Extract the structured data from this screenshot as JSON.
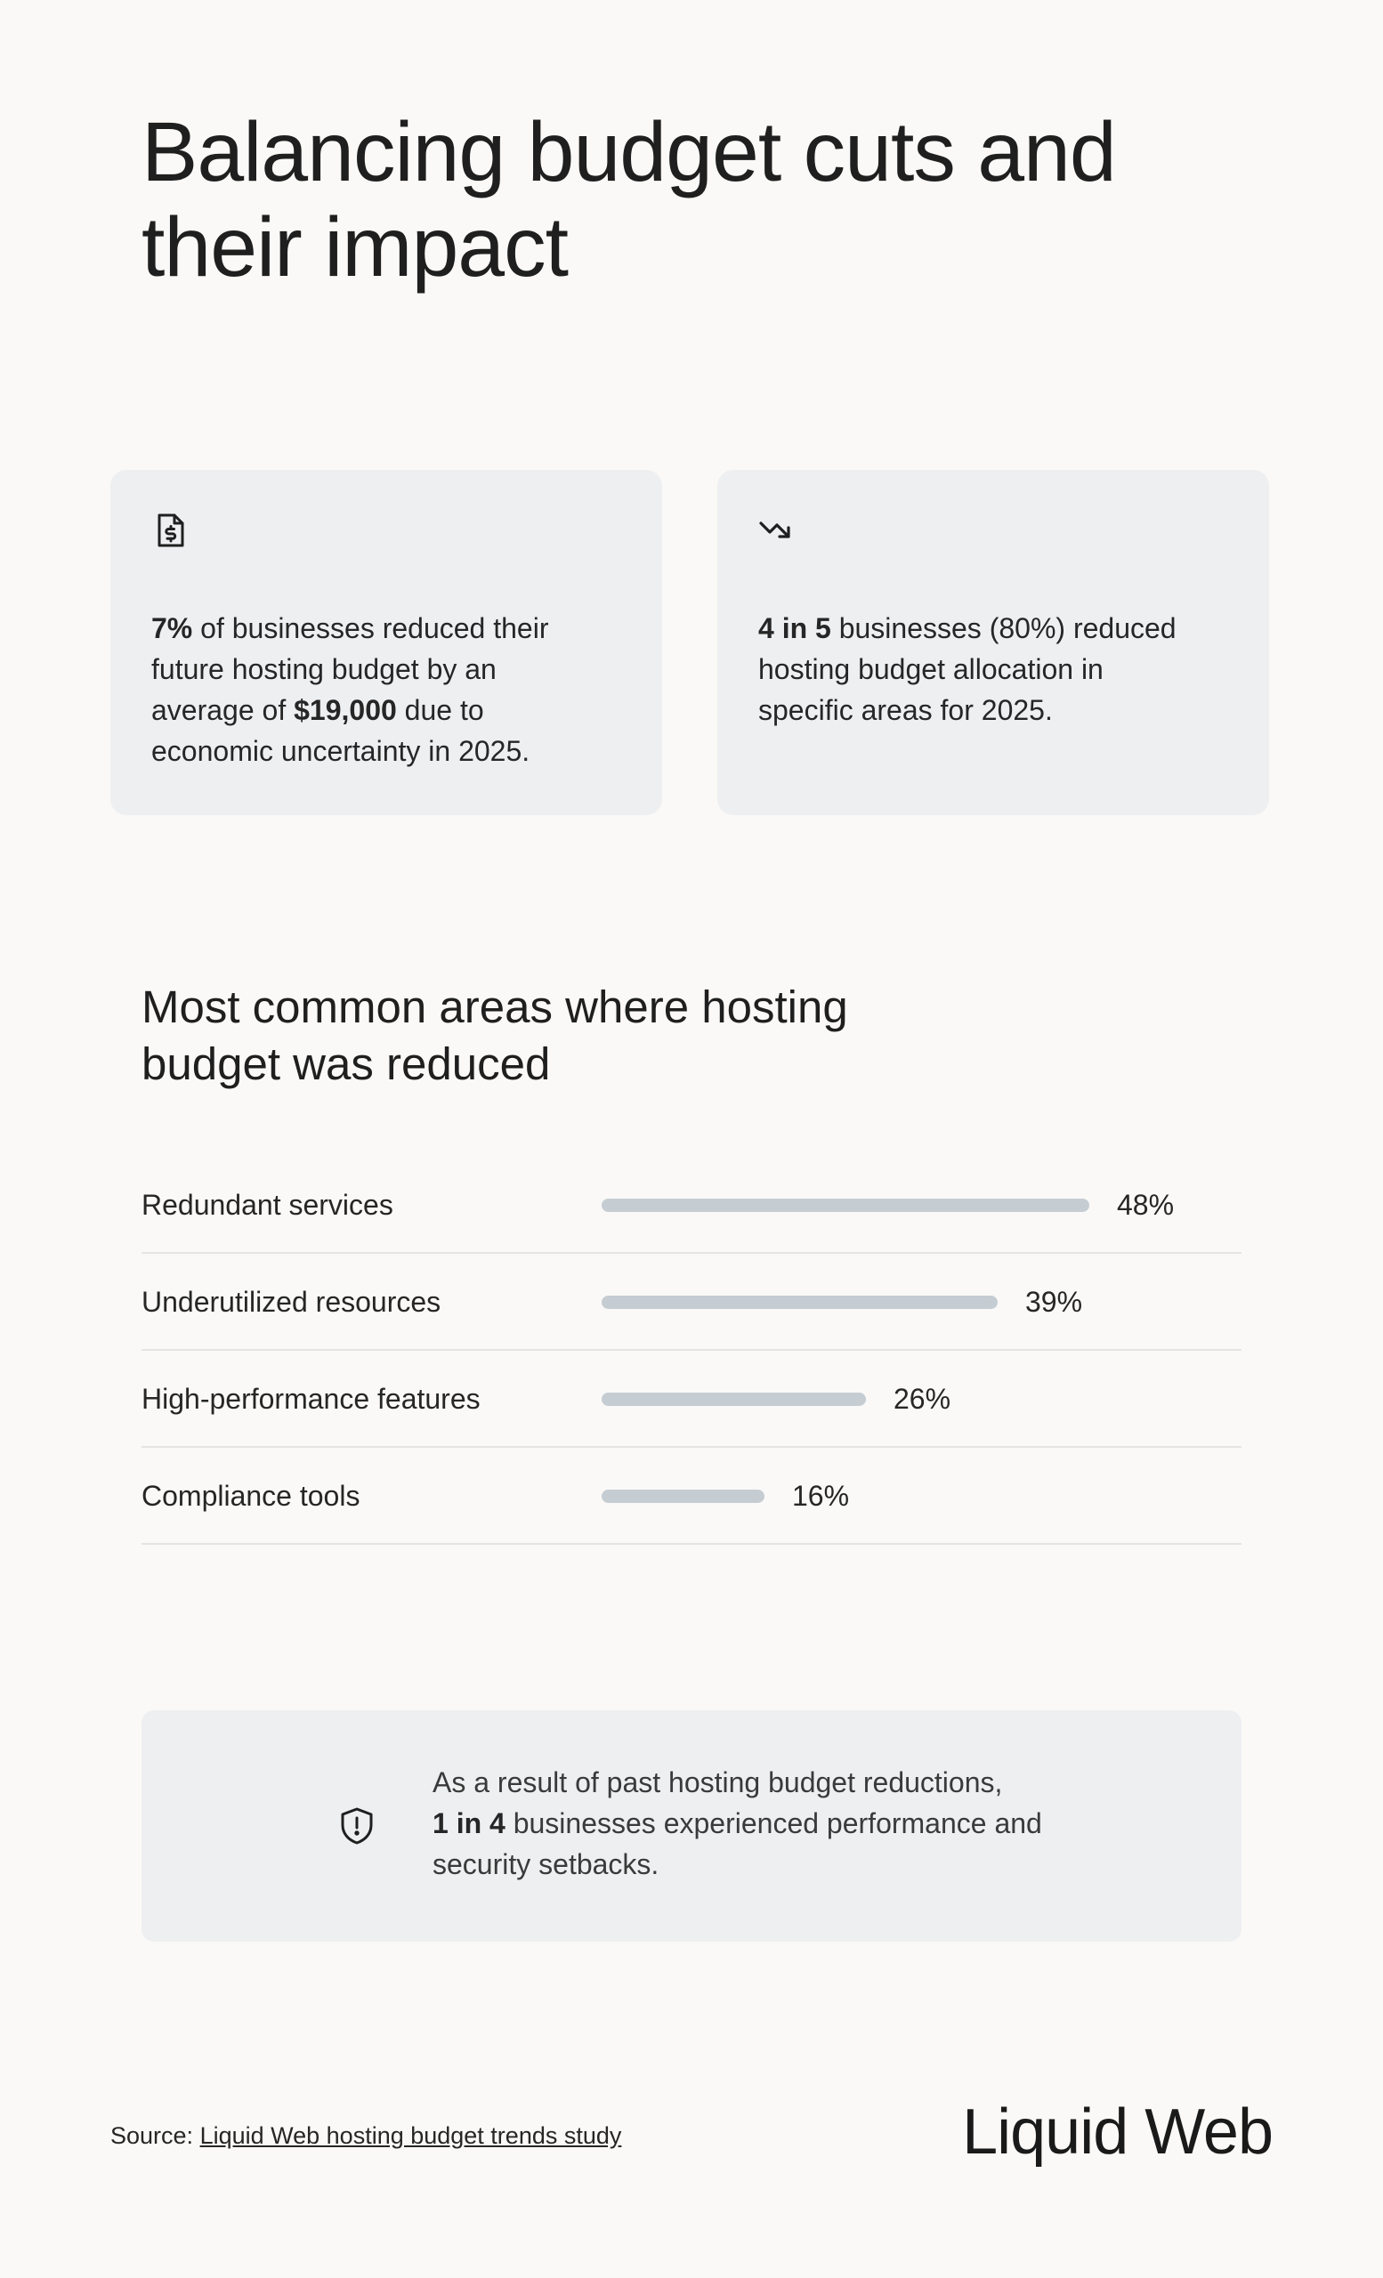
{
  "title": "Balancing budget cuts and their impact",
  "cards": [
    {
      "icon": "invoice-dollar-icon",
      "bold1": "7%",
      "text1": " of businesses reduced their future hosting budget by an average of ",
      "bold2": "$19,000",
      "text2": " due to economic uncertainty in 2025."
    },
    {
      "icon": "trend-down-icon",
      "bold1": "4 in 5",
      "text1": " businesses (80%) reduced hosting budget allocation in specific areas for 2025."
    }
  ],
  "chart_data": {
    "type": "bar",
    "orientation": "horizontal",
    "title": "Most common areas where hosting budget was reduced",
    "categories": [
      "Redundant services",
      "Underutilized resources",
      "High-performance features",
      "Compliance tools"
    ],
    "values": [
      48,
      39,
      26,
      16
    ],
    "value_labels": [
      "48%",
      "39%",
      "26%",
      "16%"
    ],
    "unit": "%",
    "xlim": [
      0,
      48
    ],
    "bar_color": "#c5cdd3",
    "grid": false
  },
  "callout": {
    "icon": "shield-alert-icon",
    "line1": "As a result of past hosting budget reductions,",
    "bold": "1 in 4",
    "rest": " businesses experienced performance and security setbacks."
  },
  "footer": {
    "source_prefix": "Source: ",
    "source_link": "Liquid Web hosting budget trends study",
    "brand": "Liquid Web"
  }
}
